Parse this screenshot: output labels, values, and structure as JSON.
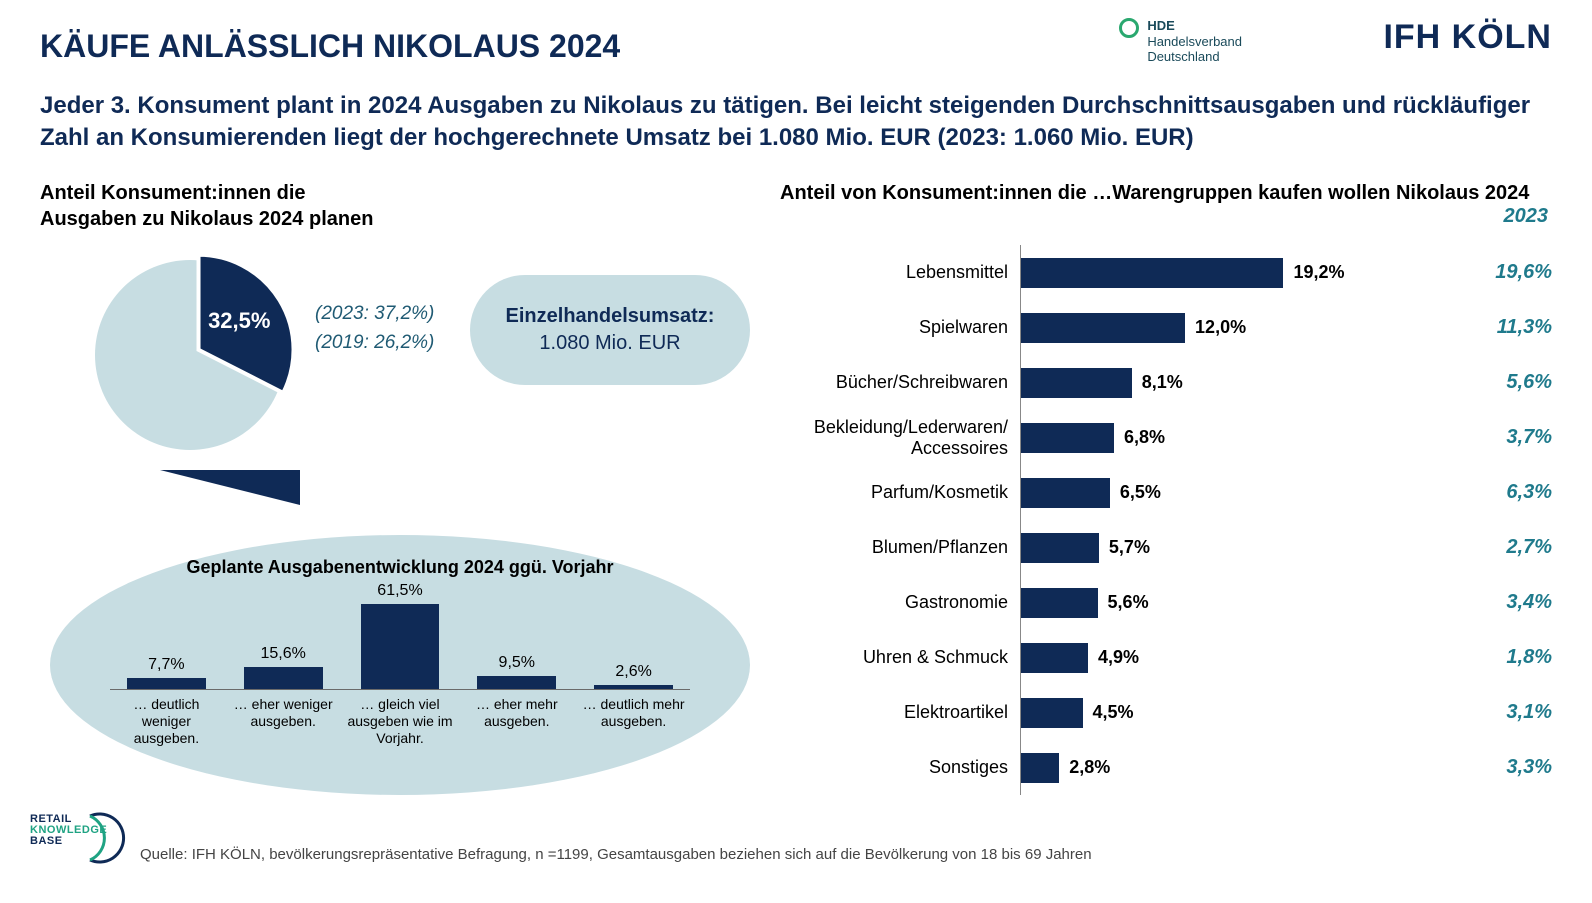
{
  "colors": {
    "navy": "#0f2a56",
    "teal_text": "#1f7a8c",
    "light_teal": "#c7dde2",
    "white": "#ffffff",
    "axis": "#888888"
  },
  "title": "KÄUFE ANLÄSSLICH NIKOLAUS 2024",
  "subtitle": "Jeder 3. Konsument plant in 2024 Ausgaben zu Nikolaus zu tätigen. Bei leicht steigenden Durchschnittsausgaben und rückläufiger Zahl an Konsumierenden liegt der hochgerechnete Umsatz bei 1.080 Mio. EUR (2023: 1.060 Mio. EUR)",
  "logos": {
    "hde_line1": "HDE",
    "hde_line2": "Handelsverband",
    "hde_line3": "Deutschland",
    "ifh": "IFH KÖLN",
    "rkb_line1": "RETAIL",
    "rkb_line2": "KNOWLEDGE",
    "rkb_line3": "BASE"
  },
  "pie": {
    "title": "Anteil Konsument:innen die\nAusgaben zu Nikolaus 2024 planen",
    "slice_pct": 32.5,
    "slice_label": "32,5%",
    "remainder_pct": 67.5,
    "meta_line1": "(2023: 37,2%)",
    "meta_line2": "(2019:  26,2%)",
    "colors": {
      "slice": "#0f2a56",
      "remainder": "#c7dde2"
    }
  },
  "pill": {
    "title": "Einzelhandelsumsatz:",
    "value": "1.080 Mio. EUR"
  },
  "spending_dev": {
    "title": "Geplante Ausgabenentwicklung 2024 ggü. Vorjahr",
    "max_pct": 65,
    "bar_color": "#0f2a56",
    "items": [
      {
        "label": "… deutlich weniger ausgeben.",
        "value": 7.7,
        "value_label": "7,7%"
      },
      {
        "label": "… eher weniger ausgeben.",
        "value": 15.6,
        "value_label": "15,6%"
      },
      {
        "label": "… gleich viel ausgeben wie im Vorjahr.",
        "value": 61.5,
        "value_label": "61,5%"
      },
      {
        "label": "… eher mehr ausgeben.",
        "value": 9.5,
        "value_label": "9,5%"
      },
      {
        "label": "… deutlich mehr ausgeben.",
        "value": 2.6,
        "value_label": "2,6%"
      }
    ]
  },
  "categories": {
    "title": "Anteil von Konsument:innen die …Warengruppen kaufen wollen Nikolaus 2024",
    "prev_year_label": "2023",
    "max_pct": 20,
    "bar_color": "#0f2a56",
    "items": [
      {
        "label": "Lebensmittel",
        "value": 19.2,
        "value_label": "19,2%",
        "prev": "19,6%"
      },
      {
        "label": "Spielwaren",
        "value": 12.0,
        "value_label": "12,0%",
        "prev": "11,3%"
      },
      {
        "label": "Bücher/Schreibwaren",
        "value": 8.1,
        "value_label": "8,1%",
        "prev": "5,6%"
      },
      {
        "label": "Bekleidung/Lederwaren/\nAccessoires",
        "value": 6.8,
        "value_label": "6,8%",
        "prev": "3,7%"
      },
      {
        "label": "Parfum/Kosmetik",
        "value": 6.5,
        "value_label": "6,5%",
        "prev": "6,3%"
      },
      {
        "label": "Blumen/Pflanzen",
        "value": 5.7,
        "value_label": "5,7%",
        "prev": "2,7%"
      },
      {
        "label": "Gastronomie",
        "value": 5.6,
        "value_label": "5,6%",
        "prev": "3,4%"
      },
      {
        "label": "Uhren & Schmuck",
        "value": 4.9,
        "value_label": "4,9%",
        "prev": "1,8%"
      },
      {
        "label": "Elektroartikel",
        "value": 4.5,
        "value_label": "4,5%",
        "prev": "3,1%"
      },
      {
        "label": "Sonstiges",
        "value": 2.8,
        "value_label": "2,8%",
        "prev": "3,3%"
      }
    ]
  },
  "footer": "Quelle: IFH KÖLN, bevölkerungsrepräsentative Befragung, n =1199, Gesamtausgaben beziehen sich auf die Bevölkerung von 18 bis 69 Jahren"
}
